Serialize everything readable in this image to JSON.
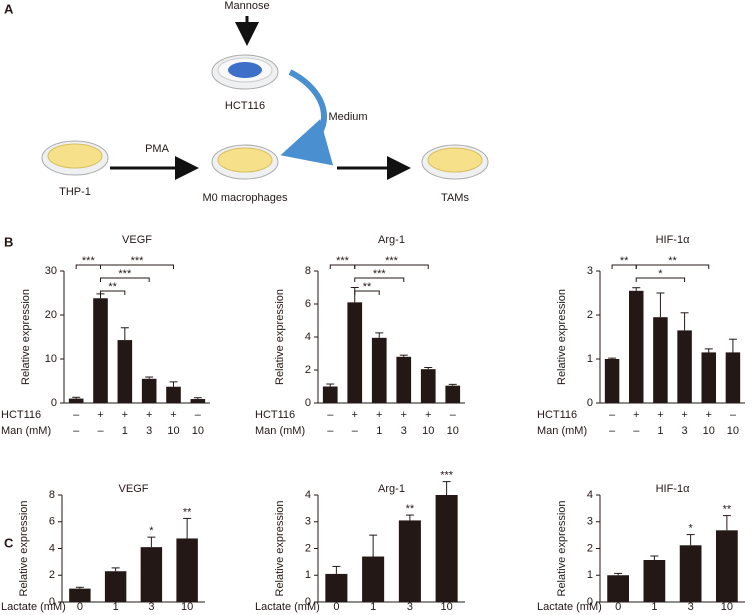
{
  "panel_labels": [
    "A",
    "B",
    "C"
  ],
  "diagram": {
    "mannose": "Mannose",
    "hct116": "HCT116",
    "medium": "Medium",
    "thp1": "THP-1",
    "pma": "PMA",
    "m0": "M0 macrophages",
    "tams": "TAMs"
  },
  "chart_data": [
    {
      "type": "bar",
      "title": "VEGF",
      "y_label": "Relative expression",
      "category_row_labels": [
        "HCT116",
        "Man (mM)"
      ],
      "categories": [
        [
          "–",
          "–"
        ],
        [
          "+",
          "–"
        ],
        [
          "+",
          "1"
        ],
        [
          "+",
          "3"
        ],
        [
          "+",
          "10"
        ],
        [
          "–",
          "10"
        ]
      ],
      "values": [
        1.0,
        23.8,
        14.3,
        5.5,
        3.7,
        0.9
      ],
      "errors": [
        0.3,
        1.0,
        2.8,
        0.4,
        1.1,
        0.3
      ],
      "color": "#231815",
      "ylim": [
        0,
        30
      ],
      "yticks": [
        0,
        10,
        20,
        30
      ],
      "brackets": [
        {
          "between": [
            0,
            1
          ],
          "label": "***"
        },
        {
          "between": [
            1,
            2
          ],
          "label": "**"
        },
        {
          "between": [
            1,
            3
          ],
          "label": "***"
        },
        {
          "between": [
            1,
            4
          ],
          "label": "***"
        }
      ]
    },
    {
      "type": "bar",
      "title": "Arg-1",
      "y_label": "Relative expression",
      "category_row_labels": [
        "HCT116",
        "Man (mM)"
      ],
      "categories": [
        [
          "–",
          "–"
        ],
        [
          "+",
          "–"
        ],
        [
          "+",
          "1"
        ],
        [
          "+",
          "3"
        ],
        [
          "+",
          "10"
        ],
        [
          "–",
          "10"
        ]
      ],
      "values": [
        1.0,
        6.1,
        3.95,
        2.8,
        2.05,
        1.05
      ],
      "errors": [
        0.15,
        0.9,
        0.3,
        0.1,
        0.1,
        0.08
      ],
      "color": "#231815",
      "ylim": [
        0,
        8
      ],
      "yticks": [
        0,
        2,
        4,
        6,
        8
      ],
      "brackets": [
        {
          "between": [
            0,
            1
          ],
          "label": "***"
        },
        {
          "between": [
            1,
            2
          ],
          "label": "**"
        },
        {
          "between": [
            1,
            3
          ],
          "label": "***"
        },
        {
          "between": [
            1,
            4
          ],
          "label": "***"
        }
      ]
    },
    {
      "type": "bar",
      "title": "HIF-1α",
      "y_label": "Relative expression",
      "category_row_labels": [
        "HCT116",
        "Man (mM)"
      ],
      "categories": [
        [
          "–",
          "–"
        ],
        [
          "+",
          "–"
        ],
        [
          "+",
          "1"
        ],
        [
          "+",
          "3"
        ],
        [
          "+",
          "10"
        ],
        [
          "–",
          "10"
        ]
      ],
      "values": [
        1.0,
        2.55,
        1.95,
        1.65,
        1.15,
        1.15
      ],
      "errors": [
        0.02,
        0.07,
        0.55,
        0.4,
        0.08,
        0.3
      ],
      "color": "#231815",
      "ylim": [
        0,
        3
      ],
      "yticks": [
        0,
        1,
        2,
        3
      ],
      "brackets": [
        {
          "between": [
            0,
            1
          ],
          "label": "**"
        },
        {
          "between": [
            1,
            3
          ],
          "label": "*"
        },
        {
          "between": [
            1,
            4
          ],
          "label": "**"
        }
      ]
    },
    {
      "type": "bar",
      "title": "VEGF",
      "y_label": "Relative expression",
      "category_row_labels": [
        "Lactate (mM)"
      ],
      "categories": [
        [
          "0"
        ],
        [
          "1"
        ],
        [
          "3"
        ],
        [
          "10"
        ]
      ],
      "values": [
        1.0,
        2.3,
        4.1,
        4.75
      ],
      "errors": [
        0.1,
        0.25,
        0.75,
        1.5
      ],
      "color": "#231815",
      "ylim": [
        0,
        8
      ],
      "yticks": [
        0,
        2,
        4,
        6,
        8
      ],
      "annotations": [
        null,
        null,
        "*",
        "**"
      ]
    },
    {
      "type": "bar",
      "title": "Arg-1",
      "y_label": "Relative expression",
      "category_row_labels": [
        "Lactate (mM)"
      ],
      "categories": [
        [
          "0"
        ],
        [
          "1"
        ],
        [
          "3"
        ],
        [
          "10"
        ]
      ],
      "values": [
        1.05,
        1.7,
        3.05,
        4.0
      ],
      "errors": [
        0.28,
        0.8,
        0.2,
        0.5
      ],
      "color": "#231815",
      "ylim": [
        0,
        4
      ],
      "yticks": [
        0,
        1,
        2,
        3,
        4
      ],
      "annotations": [
        null,
        null,
        "**",
        "***"
      ]
    },
    {
      "type": "bar",
      "title": "HIF-1α",
      "y_label": "Relative expression",
      "category_row_labels": [
        "Lactate (mM)"
      ],
      "categories": [
        [
          "0"
        ],
        [
          "1"
        ],
        [
          "3"
        ],
        [
          "10"
        ]
      ],
      "values": [
        1.0,
        1.57,
        2.12,
        2.68
      ],
      "errors": [
        0.07,
        0.15,
        0.4,
        0.55
      ],
      "color": "#231815",
      "ylim": [
        0,
        4
      ],
      "yticks": [
        0,
        1,
        2,
        3,
        4
      ],
      "annotations": [
        null,
        null,
        "*",
        "**"
      ]
    }
  ]
}
